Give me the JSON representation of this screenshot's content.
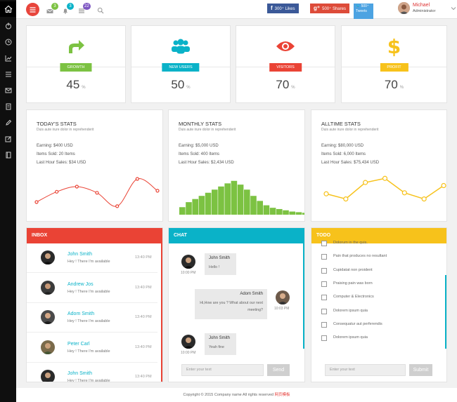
{
  "topbar": {
    "badges": {
      "messages": "3",
      "notifications": "3",
      "tasks": "22"
    },
    "social": {
      "facebook": "300⁺ Likes",
      "google": "500⁺ Shares",
      "twitter_count": "500⁺",
      "twitter_label": "Tweets"
    },
    "user": {
      "name": "Michael",
      "role": "Administrator"
    }
  },
  "stats": [
    {
      "label": "GROWTH",
      "value": "45",
      "unit": "%",
      "color": "#7cc242",
      "icon": "share-arrow-icon"
    },
    {
      "label": "NEW USERS",
      "value": "50",
      "unit": "%",
      "color": "#0ab2c8",
      "icon": "users-icon"
    },
    {
      "label": "VISITORS",
      "value": "70",
      "unit": "%",
      "color": "#ea4335",
      "icon": "eye-icon"
    },
    {
      "label": "PROFIT",
      "value": "70",
      "unit": "%",
      "color": "#f7c21b",
      "icon": "dollar-icon"
    }
  ],
  "stat_cards": [
    {
      "title": "TODAY'S STATS",
      "sub": "Duis aute irure dolor in reprehenderit",
      "earning": "Earning: $400 USD",
      "items": "Items Sold: 20 Items",
      "last": "Last Hour Sales: $34 USD"
    },
    {
      "title": "MONTHLY STATS",
      "sub": "Duis aute irure dolor in reprehenderit",
      "earning": "Earning: $5,000 USD",
      "items": "Items Sold: 400 Items",
      "last": "Last Hour Sales: $2,434 USD"
    },
    {
      "title": "ALLTIME STATS",
      "sub": "Duis aute irure dolor in reprehenderit",
      "earning": "Earning: $80,000 USD",
      "items": "Items Sold: 6,000 Items",
      "last": "Last Hour Sales: $75,434 USD"
    }
  ],
  "chart_data": [
    {
      "type": "line",
      "color": "#ea4335",
      "values": [
        3,
        5,
        6,
        4.8,
        2.2,
        7.5,
        5.2
      ]
    },
    {
      "type": "bar",
      "color": "#7cc242",
      "values": [
        12,
        20,
        25,
        30,
        35,
        40,
        45,
        50,
        54,
        48,
        40,
        30,
        22,
        15,
        11,
        9,
        7,
        5,
        4,
        3,
        2,
        1.5
      ]
    },
    {
      "type": "line",
      "color": "#f7c21b",
      "values": [
        4.6,
        3.6,
        6.8,
        7.6,
        4.8,
        3.6,
        6.2
      ]
    }
  ],
  "inbox": {
    "title": "INBOX",
    "color": "#ea4335",
    "rows": [
      {
        "name": "John Smith",
        "msg": "Hey ! There I'm available",
        "time": "13:40 PM"
      },
      {
        "name": "Andrew Jos",
        "msg": "Hey ! There I'm available",
        "time": "13:40 PM"
      },
      {
        "name": "Adom Smith",
        "msg": "Hey ! There I'm available",
        "time": "13:40 PM"
      },
      {
        "name": "Peter Carl",
        "msg": "Hey ! There I'm available",
        "time": "13:40 PM"
      },
      {
        "name": "John Smith",
        "msg": "Hey ! There I'm available",
        "time": "13:40 PM"
      }
    ]
  },
  "chat": {
    "title": "CHAT",
    "color": "#0ab2c8",
    "messages": [
      {
        "name": "John Smith",
        "text": "Hello !",
        "time": "10:00 PM"
      },
      {
        "name": "Adom Smith",
        "text": "Hi,How are you ? What about our next meeting?",
        "time": "10:03 PM"
      },
      {
        "name": "John Smith",
        "text": "Yeah fine",
        "time": "10:00 PM"
      }
    ],
    "input_placeholder": "Enter your text",
    "send": "Send"
  },
  "todo": {
    "title": "TODO",
    "color": "#f7c21b",
    "items": [
      "Dolorum in the quis.",
      "Pain that produces no resultant",
      "Cupidatat non proident",
      "Praising pain was born",
      "Computer & Electronics",
      "Dolorem ipsum quia",
      "Consequatur aut perferendis",
      "Dolorem ipsum quia"
    ],
    "input_placeholder": "Enter your text",
    "submit": "Submit"
  },
  "footer": {
    "text": "Copyright © 2015 Company name All rights reserved",
    "link": "网页模板"
  }
}
